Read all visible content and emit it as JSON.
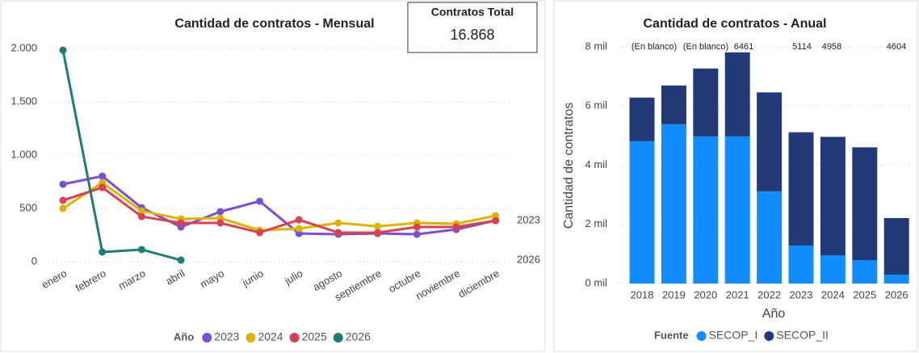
{
  "card": {
    "title": "Contratos Total",
    "value": "16.868"
  },
  "chart_data": [
    {
      "type": "line",
      "title": "Cantidad de contratos - Mensual",
      "categories": [
        "enero",
        "febrero",
        "marzo",
        "abril",
        "mayo",
        "junio",
        "julio",
        "agosto",
        "septiembre",
        "octubre",
        "noviembre",
        "diciembre"
      ],
      "series": [
        {
          "name": "2023",
          "color": "#7b4fd1",
          "end_label": true,
          "values": [
            727,
            803,
            507,
            326,
            470,
            568,
            265,
            258,
            265,
            258,
            303,
            386
          ]
        },
        {
          "name": "2024",
          "color": "#dcb400",
          "end_label": false,
          "values": [
            500,
            742,
            477,
            402,
            409,
            295,
            311,
            364,
            333,
            364,
            356,
            432
          ]
        },
        {
          "name": "2025",
          "color": "#d9414f",
          "end_label": false,
          "values": [
            576,
            697,
            424,
            364,
            364,
            273,
            394,
            273,
            273,
            326,
            326,
            386
          ]
        },
        {
          "name": "2026",
          "color": "#1e7b78",
          "end_label": true,
          "values": [
            1985,
            91,
            114,
            15,
            null,
            null,
            null,
            null,
            null,
            null,
            null,
            null
          ]
        }
      ],
      "ylim": [
        0,
        2100
      ],
      "yticks": [
        0,
        500,
        {
          "value": 1000,
          "label": "1.000"
        },
        {
          "value": 1500,
          "label": "1.500"
        },
        {
          "value": 2000,
          "label": "2.000"
        }
      ],
      "grid": true,
      "legend_title": "Año",
      "legend": "bottom"
    },
    {
      "type": "bar",
      "stacked": true,
      "title": "Cantidad de contratos - Anual",
      "categories": [
        "2018",
        "2019",
        "2020",
        "2021",
        "2022",
        "2023",
        "2024",
        "2025",
        "2026"
      ],
      "series": [
        {
          "name": "SECOP_I",
          "color": "#118dff",
          "values": [
            4809,
            5383,
            4973,
            4973,
            3115,
            1284,
            956,
            792,
            300
          ]
        },
        {
          "name": "SECOP_II",
          "color": "#223a78",
          "values": [
            1475,
            1311,
            2295,
            2841,
            3346,
            3830,
            4002,
            3812,
            1913
          ]
        }
      ],
      "ylim": [
        0,
        8000
      ],
      "yticks": [
        {
          "value": 0,
          "label": "0 mil"
        },
        {
          "value": 2000,
          "label": "2 mil"
        },
        {
          "value": 4000,
          "label": "4 mil"
        },
        {
          "value": 6000,
          "label": "6 mil"
        },
        {
          "value": 8000,
          "label": "8 mil"
        }
      ],
      "y_label": "Cantidad de contratos",
      "x_label": "Año",
      "annotations": [
        "(En blanco)",
        "(En blanco)",
        "6461",
        "5114",
        "4958",
        "4604"
      ],
      "grid": true,
      "legend_title": "Fuente",
      "legend": "bottom"
    }
  ]
}
